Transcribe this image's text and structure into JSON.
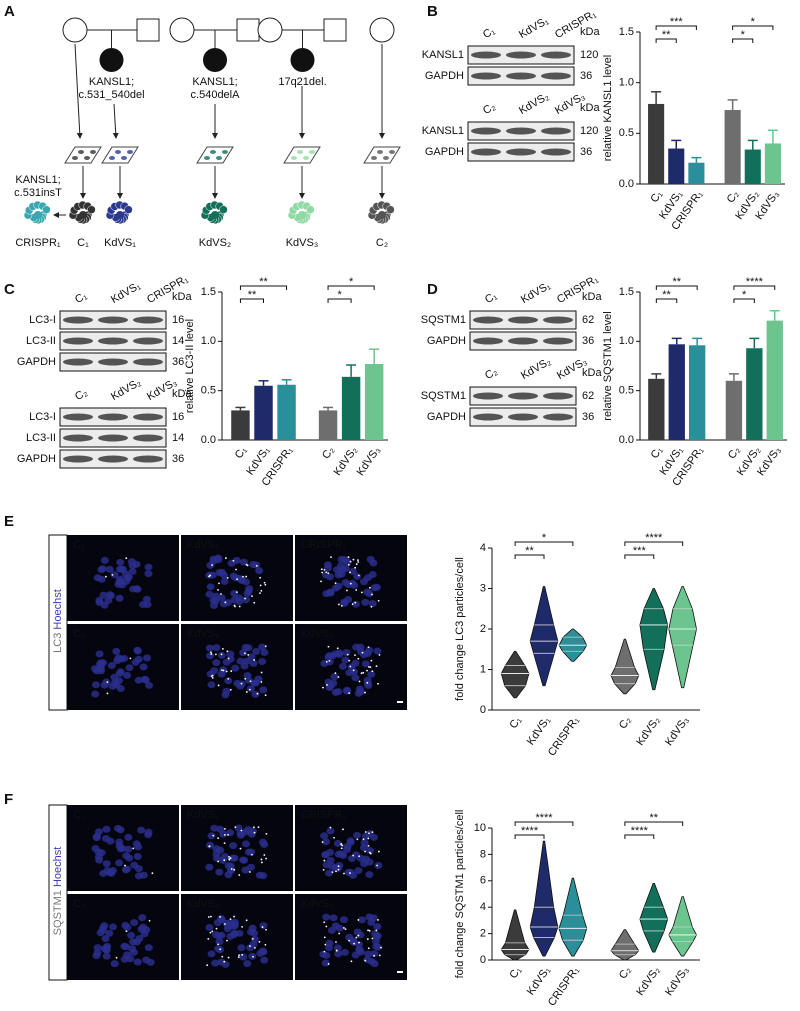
{
  "figure": {
    "pedigree": {
      "letter": "A",
      "variants": [
        [
          "KANSL1;",
          "c.531_540del"
        ],
        [
          "KANSL1;",
          "c.540delA"
        ],
        [
          "17q21del."
        ]
      ],
      "edit": [
        "KANSL1;",
        "c.531insT"
      ],
      "lines": [
        "CRISPR₁",
        "C₁",
        "KdVS₁",
        "KdVS₂",
        "KdVS₃",
        "C₂"
      ]
    },
    "blots": [
      {
        "letter": "B",
        "groups": [
          {
            "lanes": [
              "C₁",
              "KdVS₁",
              "CRISPR₁"
            ],
            "unit": "kDa",
            "bands": [
              {
                "name": "KANSL1",
                "kda": "120"
              },
              {
                "name": "GAPDH",
                "kda": "36"
              }
            ]
          },
          {
            "lanes": [
              "C₂",
              "KdVS₂",
              "KdVS₃"
            ],
            "unit": "kDa",
            "bands": [
              {
                "name": "KANSL1",
                "kda": "120"
              },
              {
                "name": "GAPDH",
                "kda": "36"
              }
            ]
          }
        ]
      },
      {
        "letter": "C",
        "groups": [
          {
            "lanes": [
              "C₁",
              "KdVS₁",
              "CRISPR₁"
            ],
            "unit": "kDa",
            "bands": [
              {
                "name": "LC3-I",
                "kda": "16"
              },
              {
                "name": "LC3-II",
                "kda": "14"
              },
              {
                "name": "GAPDH",
                "kda": "36"
              }
            ]
          },
          {
            "lanes": [
              "C₂",
              "KdVS₂",
              "KdVS₃"
            ],
            "unit": "kDa",
            "bands": [
              {
                "name": "LC3-I",
                "kda": "16"
              },
              {
                "name": "LC3-II",
                "kda": "14"
              },
              {
                "name": "GAPDH",
                "kda": "36"
              }
            ]
          }
        ]
      },
      {
        "letter": "D",
        "groups": [
          {
            "lanes": [
              "C₁",
              "KdVS₁",
              "CRISPR₁"
            ],
            "unit": "kDa",
            "bands": [
              {
                "name": "SQSTM1",
                "kda": "62"
              },
              {
                "name": "GAPDH",
                "kda": "36"
              }
            ]
          },
          {
            "lanes": [
              "C₂",
              "KdVS₂",
              "KdVS₃"
            ],
            "unit": "kDa",
            "bands": [
              {
                "name": "SQSTM1",
                "kda": "62"
              },
              {
                "name": "GAPDH",
                "kda": "36"
              }
            ]
          }
        ]
      }
    ],
    "images": [
      {
        "letter": "E",
        "stain": [
          "LC3",
          "Hoechst"
        ],
        "labels": [
          "C₁",
          "KdVS₁",
          "CRISPR₁",
          "C₂",
          "KdVS₂",
          "KdVS₃"
        ]
      },
      {
        "letter": "F",
        "stain": [
          "SQSTM1",
          "Hoechst"
        ],
        "labels": [
          "C₁",
          "KdVS₁",
          "CRISPR₁",
          "C₂",
          "KdVS₂",
          "KdVS₃"
        ]
      }
    ]
  },
  "chart_data": [
    {
      "type": "bar",
      "ylabel": "relative KANSL1 level",
      "categories": [
        "C₁",
        "KdVS₁",
        "CRISPR₁",
        "C₂",
        "KdVS₂",
        "KdVS₃"
      ],
      "colors": [
        "#3b3b3b",
        "#1f2a6b",
        "#2a8f99",
        "#6e6e6e",
        "#12705a",
        "#6cc48e"
      ],
      "values": [
        0.79,
        0.35,
        0.21,
        0.73,
        0.34,
        0.4
      ],
      "errors": [
        0.12,
        0.08,
        0.05,
        0.1,
        0.09,
        0.13
      ],
      "ylim": [
        0,
        1.5
      ],
      "yticks": [
        {
          "value": 0,
          "label": "0.0"
        },
        {
          "value": 0.5,
          "label": "0.5"
        },
        {
          "value": 1,
          "label": "1.0"
        },
        {
          "value": 1.5,
          "label": "1.5"
        }
      ],
      "significance": [
        {
          "label": "***",
          "pair": [
            "C₁",
            "CRISPR₁"
          ]
        },
        {
          "label": "**",
          "pair": [
            "C₁",
            "KdVS₁"
          ]
        },
        {
          "label": "*",
          "pair": [
            "C₂",
            "KdVS₃"
          ]
        },
        {
          "label": "*",
          "pair": [
            "C₂",
            "KdVS₂"
          ]
        }
      ]
    },
    {
      "type": "bar",
      "ylabel": "relative LC3-II level",
      "categories": [
        "C₁",
        "KdVS₁",
        "CRISPR₁",
        "C₂",
        "KdVS₂",
        "KdVS₃"
      ],
      "colors": [
        "#3b3b3b",
        "#1f2a6b",
        "#2a8f99",
        "#6e6e6e",
        "#12705a",
        "#6cc48e"
      ],
      "values": [
        0.3,
        0.55,
        0.56,
        0.3,
        0.64,
        0.77
      ],
      "errors": [
        0.03,
        0.05,
        0.05,
        0.03,
        0.12,
        0.15
      ],
      "ylim": [
        0,
        1.5
      ],
      "yticks": [
        {
          "value": 0,
          "label": "0.0"
        },
        {
          "value": 0.5,
          "label": "0.5"
        },
        {
          "value": 1,
          "label": "1.0"
        },
        {
          "value": 1.5,
          "label": "1.5"
        }
      ],
      "significance": [
        {
          "label": "**",
          "pair": [
            "C₁",
            "CRISPR₁"
          ]
        },
        {
          "label": "**",
          "pair": [
            "C₁",
            "KdVS₁"
          ]
        },
        {
          "label": "*",
          "pair": [
            "C₂",
            "KdVS₃"
          ]
        },
        {
          "label": "*",
          "pair": [
            "C₂",
            "KdVS₂"
          ]
        }
      ]
    },
    {
      "type": "bar",
      "ylabel": "relative SQSTM1 level",
      "categories": [
        "C₁",
        "KdVS₁",
        "CRISPR₁",
        "C₂",
        "KdVS₂",
        "KdVS₃"
      ],
      "colors": [
        "#3b3b3b",
        "#1f2a6b",
        "#2a8f99",
        "#6e6e6e",
        "#12705a",
        "#6cc48e"
      ],
      "values": [
        0.62,
        0.97,
        0.96,
        0.6,
        0.93,
        1.21
      ],
      "errors": [
        0.05,
        0.06,
        0.07,
        0.07,
        0.1,
        0.1
      ],
      "ylim": [
        0,
        1.5
      ],
      "yticks": [
        {
          "value": 0,
          "label": "0.0"
        },
        {
          "value": 0.5,
          "label": "0.5"
        },
        {
          "value": 1,
          "label": "1.0"
        },
        {
          "value": 1.5,
          "label": "1.5"
        }
      ],
      "significance": [
        {
          "label": "**",
          "pair": [
            "C₁",
            "CRISPR₁"
          ]
        },
        {
          "label": "**",
          "pair": [
            "C₁",
            "KdVS₁"
          ]
        },
        {
          "label": "****",
          "pair": [
            "C₂",
            "KdVS₃"
          ]
        },
        {
          "label": "*",
          "pair": [
            "C₂",
            "KdVS₂"
          ]
        }
      ]
    },
    {
      "type": "violin",
      "ylabel": "fold change LC3 particles/cell",
      "categories": [
        "C₁",
        "KdVS₁",
        "CRISPR₁",
        "C₂",
        "KdVS₂",
        "KdVS₃"
      ],
      "colors": [
        "#3b3b3b",
        "#1f2a6b",
        "#2a8f99",
        "#6e6e6e",
        "#12705a",
        "#6cc48e"
      ],
      "stats": [
        {
          "min": 0.3,
          "q1": 0.6,
          "median": 0.9,
          "q3": 1.1,
          "max": 1.45
        },
        {
          "min": 0.6,
          "q1": 1.4,
          "median": 1.7,
          "q3": 2.1,
          "max": 3.05
        },
        {
          "min": 1.2,
          "q1": 1.45,
          "median": 1.6,
          "q3": 1.8,
          "max": 2.0
        },
        {
          "min": 0.4,
          "q1": 0.65,
          "median": 0.85,
          "q3": 1.05,
          "max": 1.75
        },
        {
          "min": 0.5,
          "q1": 1.5,
          "median": 2.1,
          "q3": 2.5,
          "max": 3.0
        },
        {
          "min": 0.55,
          "q1": 1.6,
          "median": 2.0,
          "q3": 2.5,
          "max": 3.05
        }
      ],
      "ylim": [
        0,
        4
      ],
      "yticks": [
        0,
        1,
        2,
        3,
        4
      ],
      "significance": [
        {
          "label": "*",
          "pair": [
            "C₁",
            "CRISPR₁"
          ]
        },
        {
          "label": "**",
          "pair": [
            "C₁",
            "KdVS₁"
          ]
        },
        {
          "label": "****",
          "pair": [
            "C₂",
            "KdVS₃"
          ]
        },
        {
          "label": "***",
          "pair": [
            "C₂",
            "KdVS₂"
          ]
        }
      ]
    },
    {
      "type": "violin",
      "ylabel": "fold change SQSTM1 particles/cell",
      "categories": [
        "C₁",
        "KdVS₁",
        "CRISPR₁",
        "C₂",
        "KdVS₂",
        "KdVS₃"
      ],
      "colors": [
        "#3b3b3b",
        "#1f2a6b",
        "#2a8f99",
        "#6e6e6e",
        "#12705a",
        "#6cc48e"
      ],
      "stats": [
        {
          "min": 0,
          "q1": 0.4,
          "median": 0.8,
          "q3": 1.3,
          "max": 3.8
        },
        {
          "min": 0.3,
          "q1": 1.7,
          "median": 2.5,
          "q3": 4.0,
          "max": 9.0
        },
        {
          "min": 0.3,
          "q1": 1.5,
          "median": 2.4,
          "q3": 3.4,
          "max": 6.2
        },
        {
          "min": 0,
          "q1": 0.4,
          "median": 0.7,
          "q3": 1.2,
          "max": 2.3
        },
        {
          "min": 0.6,
          "q1": 2.2,
          "median": 3.1,
          "q3": 4.0,
          "max": 5.8
        },
        {
          "min": 0.3,
          "q1": 1.4,
          "median": 1.9,
          "q3": 2.5,
          "max": 4.8
        }
      ],
      "ylim": [
        0,
        10
      ],
      "yticks": [
        0,
        2,
        4,
        6,
        8,
        10
      ],
      "significance": [
        {
          "label": "****",
          "pair": [
            "C₁",
            "CRISPR₁"
          ]
        },
        {
          "label": "****",
          "pair": [
            "C₁",
            "KdVS₁"
          ]
        },
        {
          "label": "**",
          "pair": [
            "C₂",
            "KdVS₃"
          ]
        },
        {
          "label": "****",
          "pair": [
            "C₂",
            "KdVS₂"
          ]
        }
      ]
    }
  ]
}
